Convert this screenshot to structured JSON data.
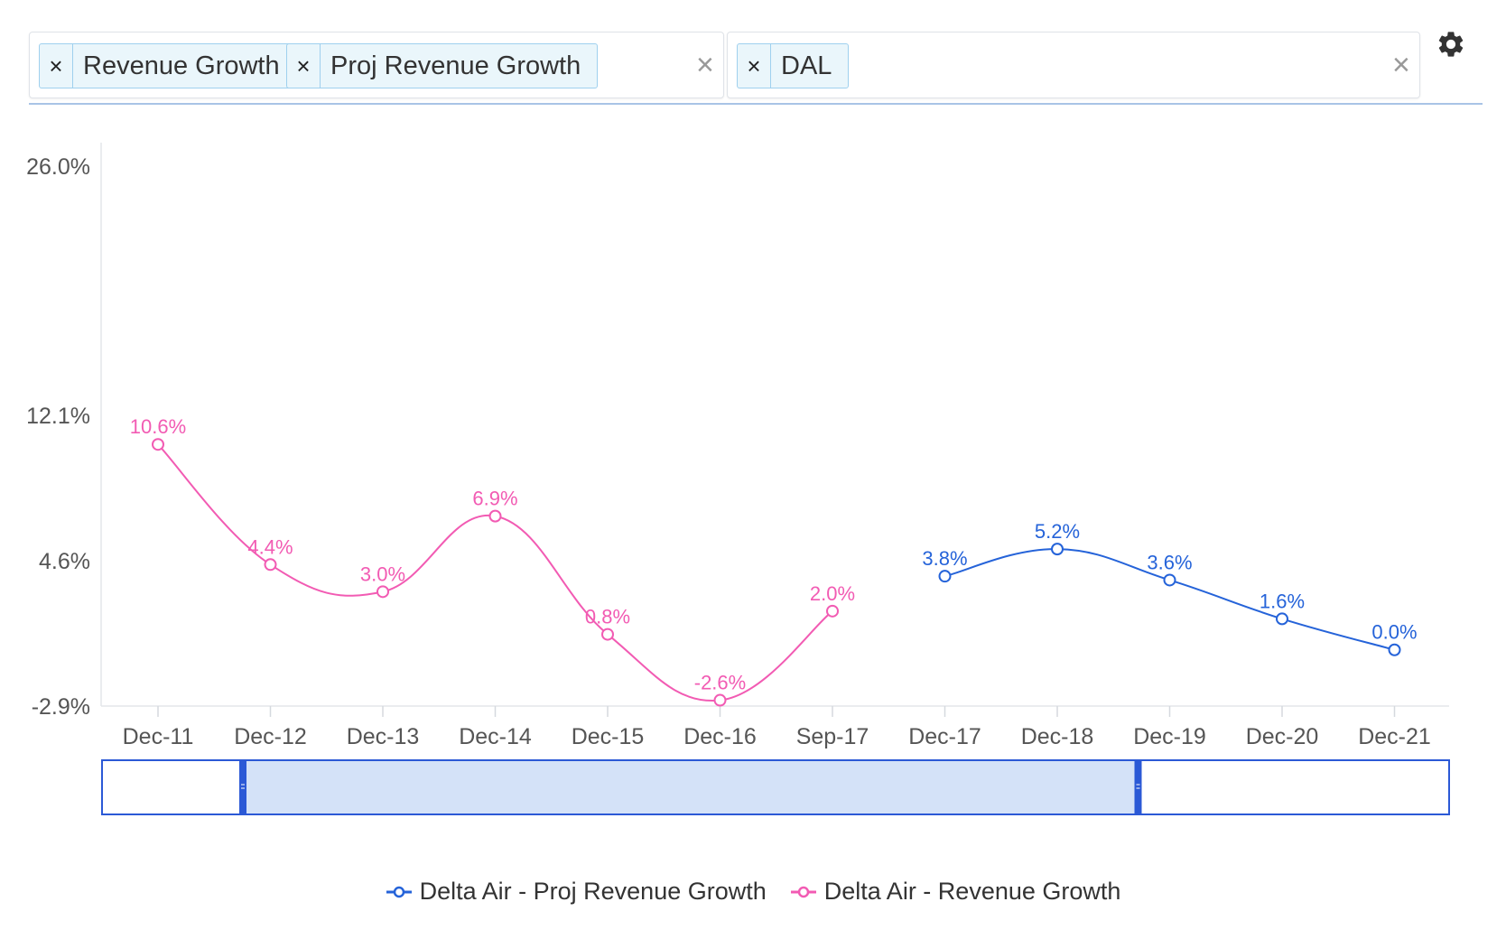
{
  "filters": {
    "metrics": [
      {
        "label": "Revenue Growth",
        "remove_glyph": "×"
      },
      {
        "label": "Proj Revenue Growth",
        "remove_glyph": "×"
      }
    ],
    "tickers": [
      {
        "label": "DAL",
        "remove_glyph": "×"
      }
    ],
    "clear_glyph": "×"
  },
  "icons": {
    "settings": "gear-icon"
  },
  "colors": {
    "revenue": "#f25bb3",
    "proj": "#2563d9",
    "navigator_fill": "#d4e2f8",
    "navigator_border": "#2b59d6"
  },
  "chart_data": {
    "type": "line",
    "categories": [
      "Dec-11",
      "Dec-12",
      "Dec-13",
      "Dec-14",
      "Dec-15",
      "Dec-16",
      "Sep-17",
      "Dec-17",
      "Dec-18",
      "Dec-19",
      "Dec-20",
      "Dec-21"
    ],
    "y_ticks": [
      -2.9,
      4.6,
      12.1,
      26.0
    ],
    "y_tick_labels": [
      "-2.9%",
      "4.6%",
      "12.1%",
      "26.0%"
    ],
    "y_scale": "nonlinear",
    "series": [
      {
        "name": "Delta Air - Revenue Growth",
        "color": "#f25bb3",
        "values": [
          10.6,
          4.4,
          3.0,
          6.9,
          0.8,
          -2.6,
          2.0,
          null,
          null,
          null,
          null,
          null
        ],
        "labels": [
          "10.6%",
          "4.4%",
          "3.0%",
          "6.9%",
          "0.8%",
          "-2.6%",
          "2.0%",
          null,
          null,
          null,
          null,
          null
        ]
      },
      {
        "name": "Delta Air - Proj Revenue Growth",
        "color": "#2563d9",
        "values": [
          null,
          null,
          null,
          null,
          null,
          null,
          null,
          3.8,
          5.2,
          3.6,
          1.6,
          0.0
        ],
        "labels": [
          null,
          null,
          null,
          null,
          null,
          null,
          null,
          "3.8%",
          "5.2%",
          "3.6%",
          "1.6%",
          "0.0%"
        ]
      }
    ],
    "navigator": {
      "range_start": "Dec-13",
      "range_end": "Dec-19"
    },
    "legend": {
      "placement": "bottom-center",
      "items": [
        "Delta Air - Proj Revenue Growth",
        "Delta Air - Revenue Growth"
      ]
    }
  }
}
